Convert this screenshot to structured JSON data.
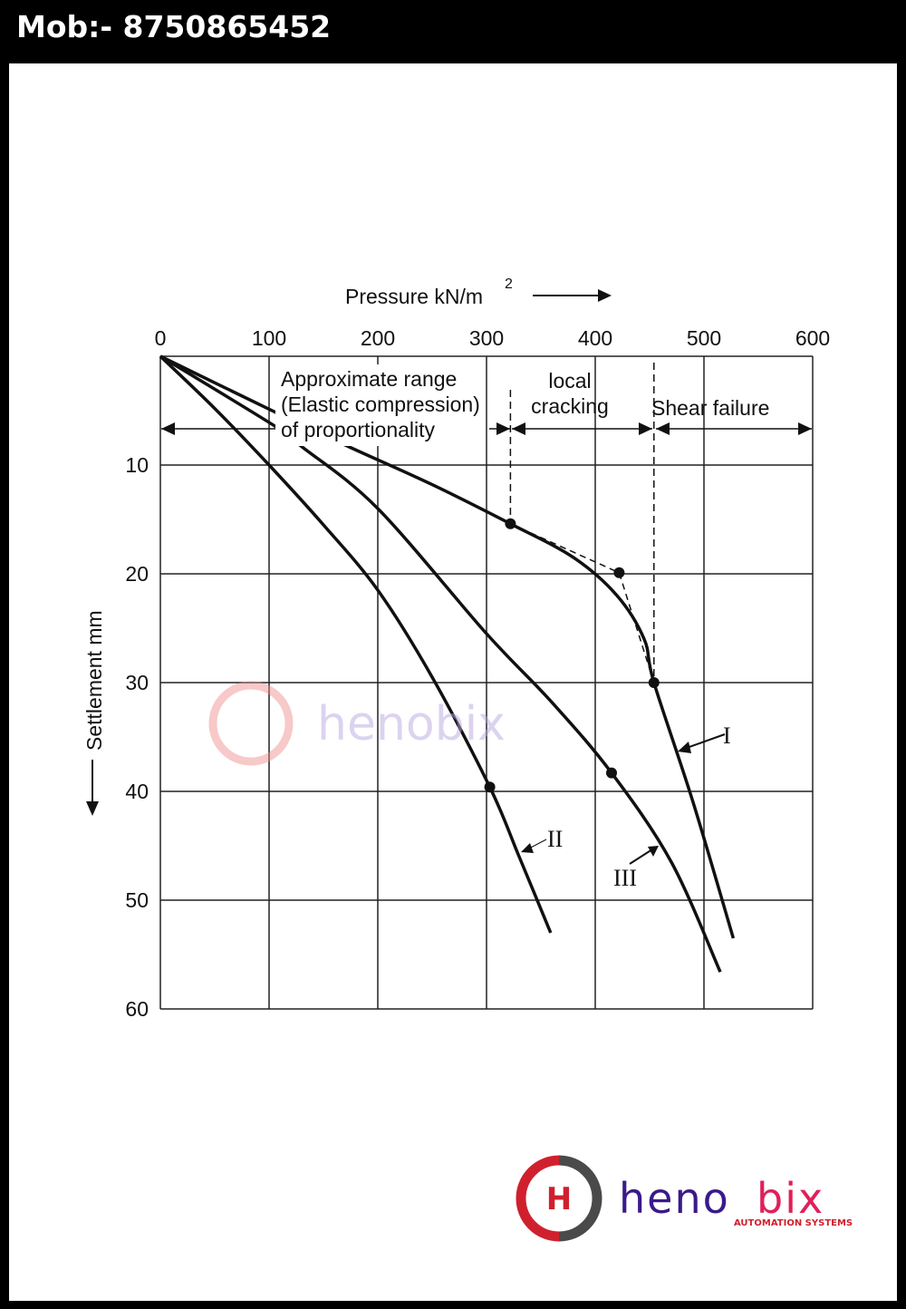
{
  "header": {
    "mobile": "Mob:- 8750865452"
  },
  "logo": {
    "name_part1": "heno",
    "name_part2": "bix",
    "tagline": "AUTOMATION SYSTEMS",
    "colors": {
      "red": "#d0202e",
      "gray": "#4a4a4a",
      "purple": "#3a1a8a",
      "pink": "#e0205a"
    }
  },
  "chart_data": {
    "type": "line",
    "xlabel": "Pressure kN/m",
    "xlabel_sup": "2",
    "ylabel": "Settlement mm",
    "xlim": [
      0,
      600
    ],
    "ylim": [
      0,
      60
    ],
    "y_inverted": true,
    "x_axis_position": "top",
    "xticks": [
      "0",
      "100",
      "200",
      "300",
      "400",
      "500",
      "600"
    ],
    "yticks": [
      "10",
      "20",
      "30",
      "40",
      "50",
      "60"
    ],
    "grid": true,
    "series": [
      {
        "name": "I",
        "x": [
          0,
          107,
          173,
          250,
          322,
          380,
          420,
          445,
          454,
          490,
          527
        ],
        "y": [
          0,
          5.2,
          8.3,
          11.8,
          15.4,
          18.5,
          22,
          26,
          30,
          41,
          53.5
        ],
        "markers": [
          [
            322,
            15.4
          ],
          [
            454,
            30
          ]
        ]
      },
      {
        "name": "II",
        "x": [
          0,
          50,
          100,
          150,
          200,
          250,
          303,
          330,
          359
        ],
        "y": [
          0,
          4.8,
          10,
          15.5,
          21.5,
          29.5,
          39.6,
          46,
          53
        ],
        "markers": [
          [
            303,
            39.6
          ]
        ]
      },
      {
        "name": "III",
        "x": [
          0,
          105,
          130,
          200,
          300,
          360,
          415,
          470,
          515
        ],
        "y": [
          0,
          6.4,
          8.3,
          14,
          25.5,
          31.8,
          38.3,
          46.5,
          56.6
        ],
        "markers": [
          [
            415,
            38.3
          ]
        ]
      }
    ],
    "construction": {
      "dashed_points": [
        [
          322,
          15.4
        ],
        [
          422,
          19.9
        ],
        [
          454,
          30
        ]
      ],
      "marker": [
        422,
        19.9
      ]
    },
    "annotations": {
      "zone1": [
        "Approximate range",
        "(Elastic compression)",
        "of proportionality"
      ],
      "zone2": [
        "local",
        "cracking"
      ],
      "zone3": "Shear failure",
      "boundaries": [
        322,
        454
      ]
    }
  }
}
